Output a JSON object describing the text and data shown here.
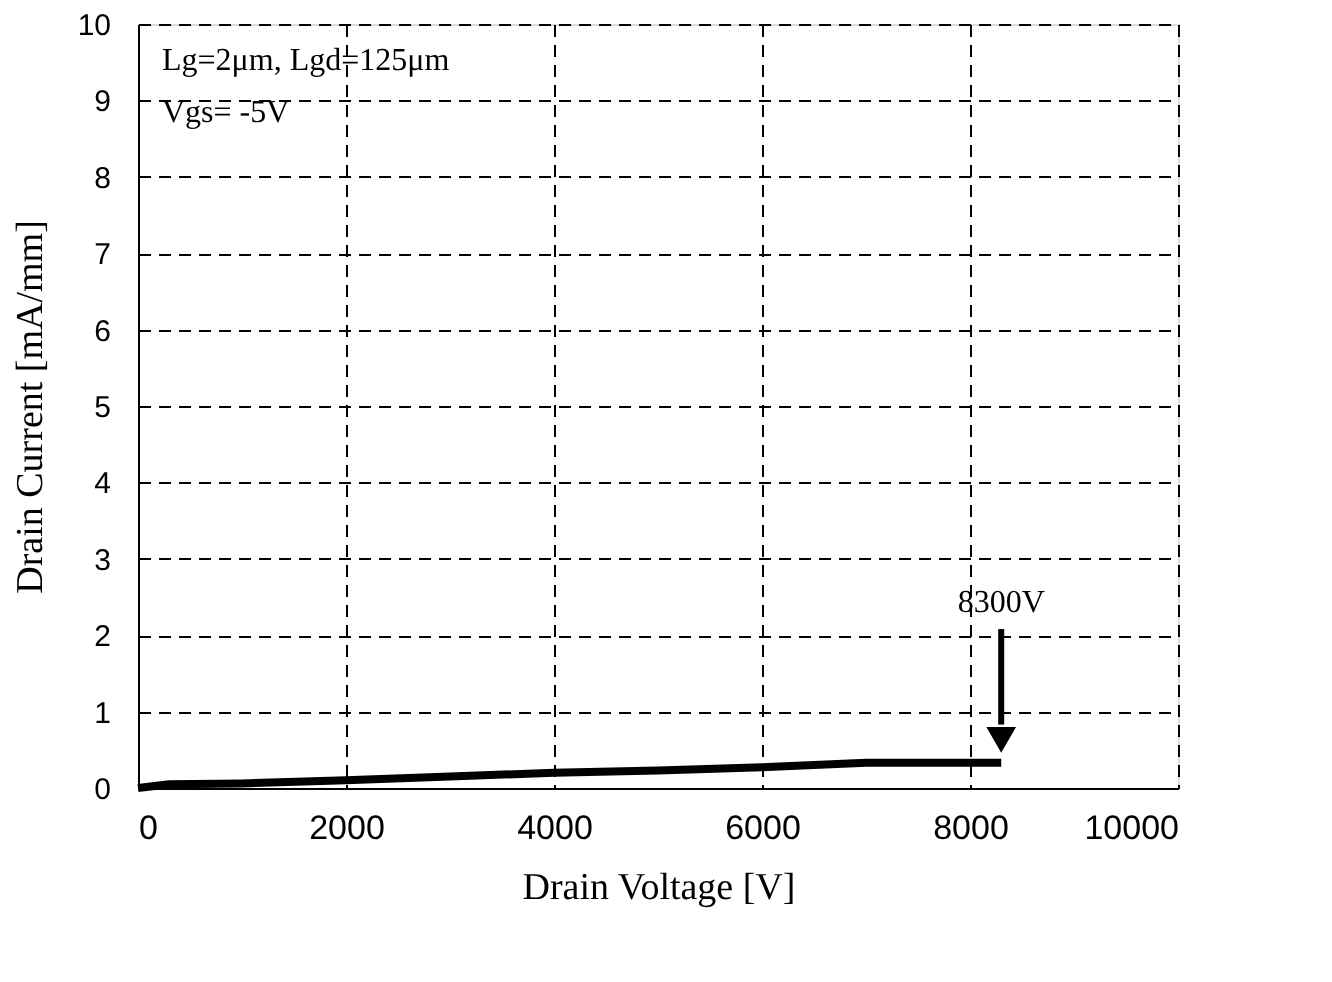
{
  "chart_data": {
    "type": "line",
    "xlabel": "Drain Voltage [V]",
    "ylabel": "Drain Current  [mA/mm]",
    "x": [
      0,
      300,
      1000,
      2000,
      3000,
      4000,
      5000,
      6000,
      7000,
      8300
    ],
    "series": [
      {
        "color": "#000000",
        "values": [
          0,
          0.05,
          0.06,
          0.1,
          0.15,
          0.2,
          0.23,
          0.27,
          0.33,
          0.33
        ]
      }
    ],
    "xlim": [
      0,
      10000
    ],
    "xticks": [
      0,
      2000,
      4000,
      6000,
      8000,
      10000
    ],
    "ylim": [
      0,
      10
    ],
    "yticks": [
      0,
      1,
      2,
      3,
      4,
      5,
      6,
      7,
      8,
      9,
      10
    ],
    "grid": true,
    "line_style": "solid",
    "marker": "none",
    "annotations": [
      "Lg=2μm, Lgd=125μm",
      "Vgs= -5V",
      "8300V"
    ]
  }
}
